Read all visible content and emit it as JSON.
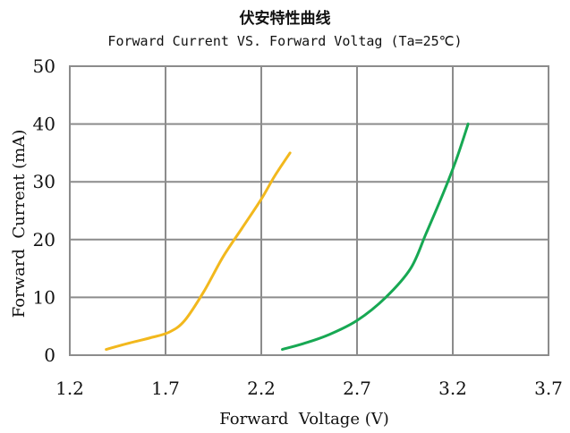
{
  "chart_data": {
    "type": "line",
    "title": "伏安特性曲线",
    "subtitle": "Forward Current VS. Forward Voltag (Ta=25℃)",
    "xlabel": "Forward  Voltage (V)",
    "ylabel": "Forward  Current (mA)",
    "xlim": [
      1.2,
      3.7
    ],
    "ylim": [
      0,
      50
    ],
    "xticks": [
      1.2,
      1.7,
      2.2,
      2.7,
      3.2,
      3.7
    ],
    "xtick_labels": [
      "1.2",
      "1.7",
      "2.2",
      "2.7",
      "3.2",
      "3.7"
    ],
    "yticks": [
      0,
      10,
      20,
      30,
      40,
      50
    ],
    "ytick_labels": [
      "0",
      "10",
      "20",
      "30",
      "40",
      "50"
    ],
    "grid": true,
    "series": [
      {
        "color": "#f2b81d",
        "x": [
          1.39,
          1.5,
          1.62,
          1.72,
          1.8,
          1.9,
          2.0,
          2.1,
          2.2,
          2.27,
          2.35
        ],
        "y": [
          1,
          2,
          3,
          4,
          6,
          11,
          17,
          22,
          27,
          31,
          35
        ]
      },
      {
        "color": "#17a853",
        "x": [
          2.31,
          2.42,
          2.55,
          2.7,
          2.85,
          2.98,
          3.06,
          3.15,
          3.22,
          3.28
        ],
        "y": [
          1,
          2,
          3.5,
          6,
          10,
          15,
          21,
          28,
          34,
          40
        ]
      }
    ]
  }
}
